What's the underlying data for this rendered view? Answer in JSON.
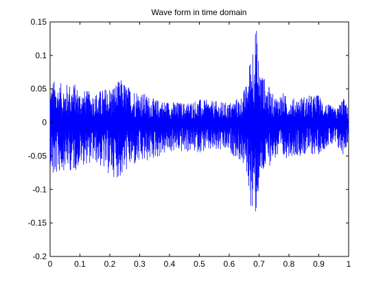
{
  "chart_data": {
    "type": "line",
    "title": "Wave form in time domain",
    "xlabel": "",
    "ylabel": "",
    "xlim": [
      0,
      1
    ],
    "ylim": [
      -0.2,
      0.15
    ],
    "x_ticks": [
      0,
      0.1,
      0.2,
      0.3,
      0.4,
      0.5,
      0.6,
      0.7,
      0.8,
      0.9,
      1
    ],
    "x_tick_labels": [
      "0",
      "0.1",
      "0.2",
      "0.3",
      "0.4",
      "0.5",
      "0.6",
      "0.7",
      "0.8",
      "0.9",
      "1"
    ],
    "y_ticks": [
      -0.2,
      -0.15,
      -0.1,
      -0.05,
      0,
      0.05,
      0.1,
      0.15
    ],
    "y_tick_labels": [
      "-0.2",
      "-0.15",
      "-0.1",
      "-0.05",
      "0",
      "0.05",
      "0.1",
      "0.15"
    ],
    "grid": false,
    "series_color": "#0000ff",
    "series": [
      {
        "name": "",
        "envelope_x": [
          0,
          0.01,
          0.02,
          0.05,
          0.08,
          0.1,
          0.15,
          0.2,
          0.24,
          0.26,
          0.3,
          0.35,
          0.4,
          0.45,
          0.5,
          0.55,
          0.6,
          0.64,
          0.66,
          0.67,
          0.68,
          0.69,
          0.7,
          0.72,
          0.75,
          0.78,
          0.8,
          0.85,
          0.9,
          0.93,
          0.96,
          0.98,
          1
        ],
        "envelope_upper": [
          0.055,
          0.065,
          0.06,
          0.058,
          0.06,
          0.05,
          0.045,
          0.055,
          0.065,
          0.055,
          0.048,
          0.035,
          0.032,
          0.03,
          0.035,
          0.032,
          0.03,
          0.04,
          0.06,
          0.1,
          0.13,
          0.15,
          0.09,
          0.065,
          0.04,
          0.045,
          0.035,
          0.04,
          0.042,
          0.028,
          0.02,
          0.04,
          0.02
        ],
        "envelope_lower": [
          -0.06,
          -0.09,
          -0.08,
          -0.07,
          -0.075,
          -0.065,
          -0.06,
          -0.08,
          -0.085,
          -0.07,
          -0.065,
          -0.055,
          -0.045,
          -0.045,
          -0.045,
          -0.045,
          -0.045,
          -0.06,
          -0.08,
          -0.12,
          -0.155,
          -0.14,
          -0.1,
          -0.075,
          -0.055,
          -0.06,
          -0.05,
          -0.05,
          -0.048,
          -0.035,
          -0.04,
          -0.05,
          -0.03
        ]
      }
    ]
  }
}
